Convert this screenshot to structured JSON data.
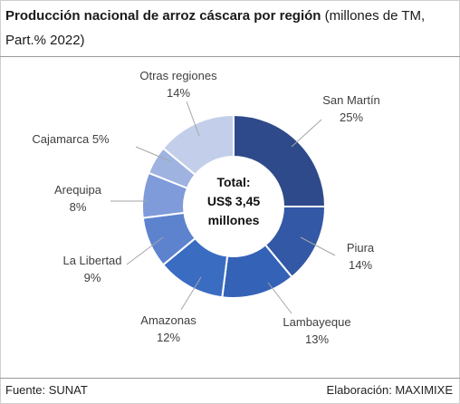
{
  "header": {
    "title_bold": "Producción nacional de arroz cáscara por región",
    "title_rest": " (millones de TM, Part.% 2022)"
  },
  "chart_data": {
    "type": "pie",
    "subtype": "donut",
    "title": "Producción nacional de arroz cáscara por región (millones de TM, Part.% 2022)",
    "center_text": [
      "Total:",
      "US$ 3,45",
      "millones"
    ],
    "unit": "%",
    "categories": [
      "San Martín",
      "Piura",
      "Lambayeque",
      "Amazonas",
      "La Libertad",
      "Arequipa",
      "Cajamarca",
      "Otras regiones"
    ],
    "values": [
      25,
      14,
      13,
      12,
      9,
      8,
      5,
      14
    ],
    "value_labels": [
      "25%",
      "14%",
      "13%",
      "12%",
      "9%",
      "8%",
      "5%",
      "14%"
    ],
    "colors": [
      "#2e4a8a",
      "#3258a6",
      "#3462b6",
      "#3a6cc2",
      "#5d83cf",
      "#7f9bd9",
      "#9fb3e1",
      "#c3cfea"
    ],
    "legend": "none"
  },
  "footer": {
    "source": "Fuente: SUNAT",
    "credit": "Elaboración: MAXIMIXE"
  }
}
